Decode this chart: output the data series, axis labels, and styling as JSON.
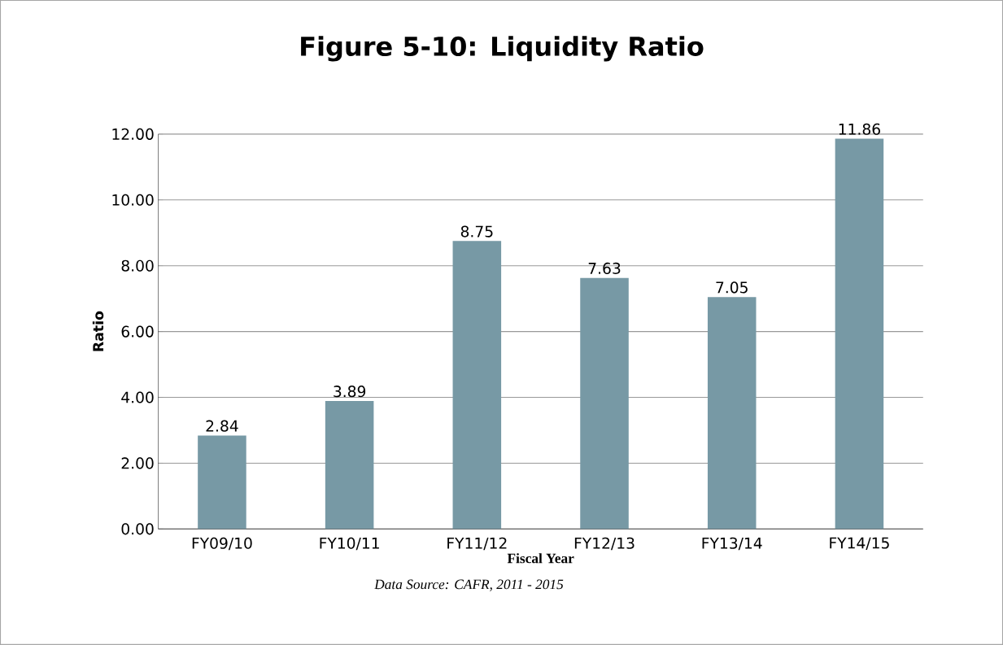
{
  "chart_data": {
    "type": "bar",
    "title": "Figure 5-10:  Liquidity Ratio",
    "xlabel": "Fiscal Year",
    "ylabel": "Ratio",
    "annotations": [
      "Data Source:  CAFR, 2011 - 2015"
    ],
    "categories": [
      "FY09/10",
      "FY10/11",
      "FY11/12",
      "FY12/13",
      "FY13/14",
      "FY14/15"
    ],
    "values": [
      2.84,
      3.89,
      8.75,
      7.63,
      7.05,
      11.86
    ],
    "color": "#7799a5",
    "ylim": [
      0,
      12
    ],
    "yticks": [
      {
        "value": 0,
        "label": "0.00"
      },
      {
        "value": 2,
        "label": "2.00"
      },
      {
        "value": 4,
        "label": "4.00"
      },
      {
        "value": 6,
        "label": "6.00"
      },
      {
        "value": 8,
        "label": "8.00"
      },
      {
        "value": 10,
        "label": "10.00"
      },
      {
        "value": 12,
        "label": "12.00"
      }
    ],
    "grid": "y",
    "data_labels": true
  }
}
